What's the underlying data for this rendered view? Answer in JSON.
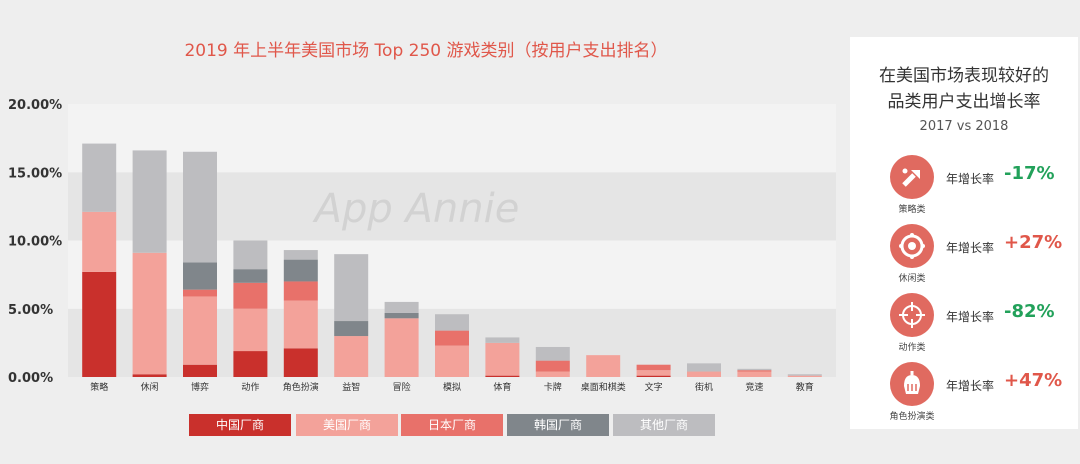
{
  "chart_data": {
    "type": "bar",
    "stacked": true,
    "title": "2019 年上半年美国市场 Top 250 游戏类别（按用户支出排名）",
    "ylim": [
      0,
      20
    ],
    "yticks": [
      "0.00%",
      "5.00%",
      "10.00%",
      "15.00%",
      "20.00%"
    ],
    "ytick_values": [
      0,
      5,
      10,
      15,
      20
    ],
    "grid": true,
    "legend_position": "bottom",
    "categories": [
      "策略",
      "休闲",
      "博弈",
      "动作",
      "角色扮演",
      "益智",
      "冒险",
      "模拟",
      "体育",
      "卡牌",
      "桌面和棋类",
      "文字",
      "街机",
      "竞速",
      "教育"
    ],
    "series": [
      {
        "name": "中国厂商",
        "color": "#c9302c",
        "values": [
          7.7,
          0.2,
          0.9,
          1.9,
          2.1,
          0,
          0,
          0,
          0.1,
          0,
          0,
          0.1,
          0,
          0,
          0
        ]
      },
      {
        "name": "美国厂商",
        "color": "#f3a29a",
        "values": [
          4.4,
          8.9,
          5.0,
          3.1,
          3.5,
          3.0,
          4.3,
          2.3,
          2.4,
          0.4,
          1.6,
          0.4,
          0.4,
          0.4,
          0.1
        ]
      },
      {
        "name": "日本厂商",
        "color": "#e8716a",
        "values": [
          0,
          0,
          0.5,
          1.9,
          1.4,
          0,
          0,
          1.1,
          0,
          0.8,
          0,
          0.4,
          0,
          0.1,
          0
        ]
      },
      {
        "name": "韩国厂商",
        "color": "#80868b",
        "values": [
          0,
          0,
          2.0,
          1.0,
          1.6,
          1.1,
          0.4,
          0,
          0,
          0,
          0,
          0,
          0,
          0,
          0
        ]
      },
      {
        "name": "其他厂商",
        "color": "#bdbdc0",
        "values": [
          5.0,
          7.5,
          8.1,
          2.1,
          0.7,
          4.9,
          0.8,
          1.2,
          0.4,
          1.0,
          0,
          0,
          0.6,
          0.1,
          0.1
        ]
      }
    ],
    "watermark": "App Annie"
  },
  "side_panel": {
    "title_line1": "在美国市场表现较好的",
    "title_line2": "品类用户支出增长率",
    "subtitle": "2017 vs 2018",
    "growth_label": "年增长率",
    "items": [
      {
        "category": "策略类",
        "value": "-17%",
        "icon": "strategy-icon",
        "trend": "negative"
      },
      {
        "category": "休闲类",
        "value": "+27%",
        "icon": "casual-icon",
        "trend": "positive"
      },
      {
        "category": "动作类",
        "value": "-82%",
        "icon": "action-crosshair-icon",
        "trend": "negative"
      },
      {
        "category": "角色扮演类",
        "value": "+47%",
        "icon": "rpg-helmet-icon",
        "trend": "positive"
      }
    ]
  }
}
